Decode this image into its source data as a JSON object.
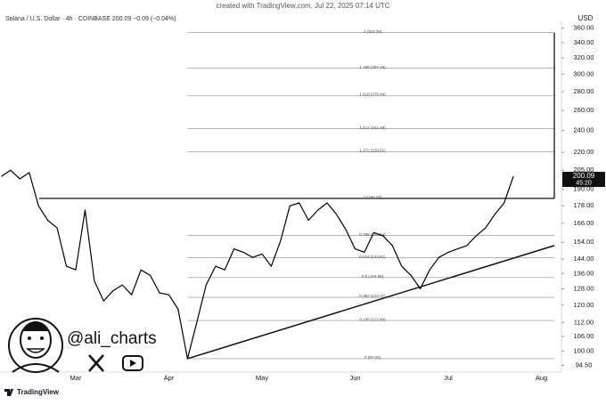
{
  "chart_data": {
    "type": "line",
    "watermark": "created with TradingView.com, Jul 22, 2025 07:14 UTC",
    "title": "Solana / U.S. Dollar · 4h · COINBASE  200.09  −0.09 (−0.04%)",
    "currency": "USD",
    "scale": "log",
    "categories": [
      null,
      null,
      null,
      null,
      null,
      null,
      null,
      null,
      "Mar",
      null,
      null,
      null,
      null,
      null,
      null,
      null,
      null,
      null,
      "Apr",
      null,
      null,
      null,
      null,
      null,
      null,
      null,
      null,
      null,
      "May",
      null,
      null,
      null,
      null,
      null,
      null,
      null,
      null,
      null,
      "Jun",
      null,
      null,
      null,
      null,
      null,
      null,
      null,
      null,
      null,
      "Jul",
      null,
      null,
      null,
      null,
      null,
      null,
      null,
      null,
      null,
      "Aug"
    ],
    "series": [
      {
        "name": "SOLUSD",
        "color": "#000000",
        "values": [
          200,
          205,
          198,
          203,
          178,
          168,
          163,
          140,
          138,
          175,
          132,
          122,
          127,
          130,
          125,
          138,
          135,
          126,
          125,
          118,
          97,
          112,
          130,
          140,
          138,
          150,
          148,
          145,
          147,
          140,
          155,
          178,
          180,
          168,
          175,
          180,
          172,
          162,
          150,
          148,
          160,
          158,
          152,
          140,
          135,
          128,
          138,
          145,
          148,
          150,
          152,
          158,
          163,
          172,
          180,
          200.09,
          null,
          null,
          null
        ]
      }
    ],
    "ylim": [
      92,
      370
    ],
    "yticks": [
      {
        "value": 360,
        "label": "360.00"
      },
      {
        "value": 340,
        "label": "340.00"
      },
      {
        "value": 320,
        "label": "320.00"
      },
      {
        "value": 300,
        "label": "300.00"
      },
      {
        "value": 280,
        "label": "280.00"
      },
      {
        "value": 260,
        "label": "260.00"
      },
      {
        "value": 240,
        "label": "240.00"
      },
      {
        "value": 220,
        "label": "220.00"
      },
      {
        "value": 205,
        "label": "205.00"
      },
      {
        "value": 190,
        "label": "190.00"
      },
      {
        "value": 178,
        "label": "178.00"
      },
      {
        "value": 166,
        "label": "166.00"
      },
      {
        "value": 154,
        "label": "154.00"
      },
      {
        "value": 144,
        "label": "144.00"
      },
      {
        "value": 136,
        "label": "136.00"
      },
      {
        "value": 128,
        "label": "128.00"
      },
      {
        "value": 120,
        "label": "120.00"
      },
      {
        "value": 112,
        "label": "112.00"
      },
      {
        "value": 106,
        "label": "106.00"
      },
      {
        "value": 100,
        "label": "100.00"
      },
      {
        "value": 94.5,
        "label": "94.50"
      }
    ],
    "fib_levels": [
      {
        "value": 353.78,
        "label": "2 (353.78)"
      },
      {
        "value": 307.26,
        "label": "1.786 (307.26)"
      },
      {
        "value": 275.49,
        "label": "1.618 (275.49)"
      },
      {
        "value": 241.68,
        "label": "1.414 (241.68)"
      },
      {
        "value": 220.51,
        "label": "1.272 (220.51)"
      },
      {
        "value": 183.27,
        "label": "1 (183.27)"
      },
      {
        "value": 158.14,
        "label": "0.786 (158.14)"
      },
      {
        "value": 144.81,
        "label": "0.618 (144.81)"
      },
      {
        "value": 133.86,
        "label": "0.5 (133.86)"
      },
      {
        "value": 123.77,
        "label": "0.382 (123.77)"
      },
      {
        "value": 112.89,
        "label": "0.236 (112.89)"
      },
      {
        "value": 97.03,
        "label": "0 (97.03)"
      }
    ],
    "trendline_end": 152,
    "price_tag": {
      "value": 200.09,
      "countdown": "45:20"
    },
    "author": "@ali_charts",
    "brand": "TradingView"
  }
}
